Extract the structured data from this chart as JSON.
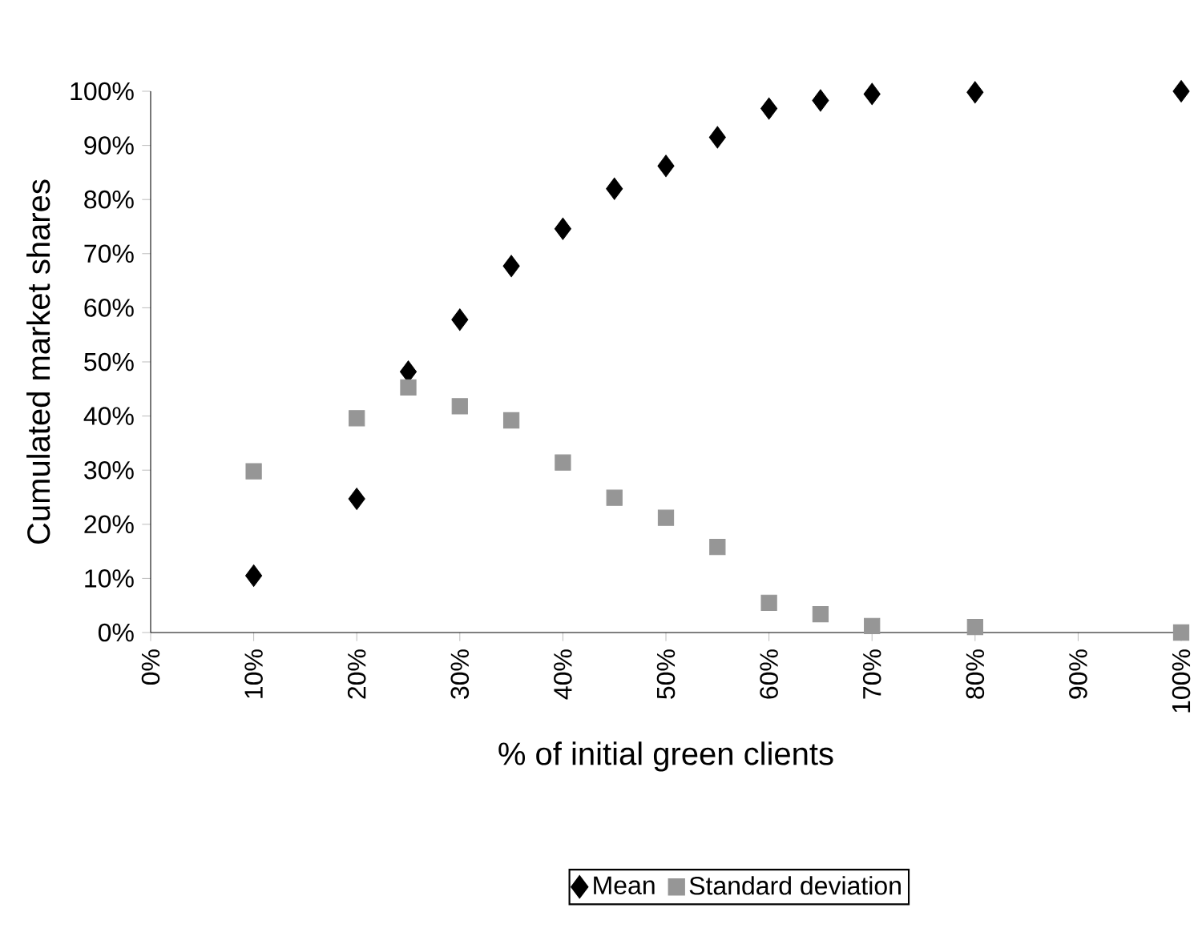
{
  "chart_data": {
    "type": "scatter",
    "xlabel": "% of initial green clients",
    "ylabel": "Cumulated market shares",
    "xlim": [
      0,
      100
    ],
    "ylim": [
      0,
      100
    ],
    "xticks": [
      {
        "value": 0,
        "label": "0%"
      },
      {
        "value": 10,
        "label": "10%"
      },
      {
        "value": 20,
        "label": "20%"
      },
      {
        "value": 30,
        "label": "30%"
      },
      {
        "value": 40,
        "label": "40%"
      },
      {
        "value": 50,
        "label": "50%"
      },
      {
        "value": 60,
        "label": "60%"
      },
      {
        "value": 70,
        "label": "70%"
      },
      {
        "value": 80,
        "label": "80%"
      },
      {
        "value": 90,
        "label": "90%"
      },
      {
        "value": 100,
        "label": "100%"
      }
    ],
    "yticks": [
      {
        "value": 0,
        "label": "0%"
      },
      {
        "value": 10,
        "label": "10%"
      },
      {
        "value": 20,
        "label": "20%"
      },
      {
        "value": 30,
        "label": "30%"
      },
      {
        "value": 40,
        "label": "40%"
      },
      {
        "value": 50,
        "label": "50%"
      },
      {
        "value": 60,
        "label": "60%"
      },
      {
        "value": 70,
        "label": "70%"
      },
      {
        "value": 80,
        "label": "80%"
      },
      {
        "value": 90,
        "label": "90%"
      },
      {
        "value": 100,
        "label": "100%"
      }
    ],
    "grid": false,
    "legend": "bottom",
    "x": [
      10,
      20,
      25,
      30,
      35,
      40,
      45,
      50,
      55,
      60,
      65,
      70,
      80,
      100
    ],
    "series": [
      {
        "name": "Mean",
        "color": "#000000",
        "marker": "diamond",
        "values": [
          10.5,
          24.7,
          48.2,
          57.8,
          67.7,
          74.6,
          82.0,
          86.2,
          91.5,
          96.8,
          98.3,
          99.5,
          99.8,
          100
        ]
      },
      {
        "name": "Standard deviation",
        "color": "#969696",
        "marker": "square",
        "values": [
          29.8,
          39.6,
          45.3,
          41.8,
          39.2,
          31.4,
          24.9,
          21.2,
          15.8,
          5.5,
          3.4,
          1.2,
          1.0,
          0
        ]
      }
    ]
  }
}
